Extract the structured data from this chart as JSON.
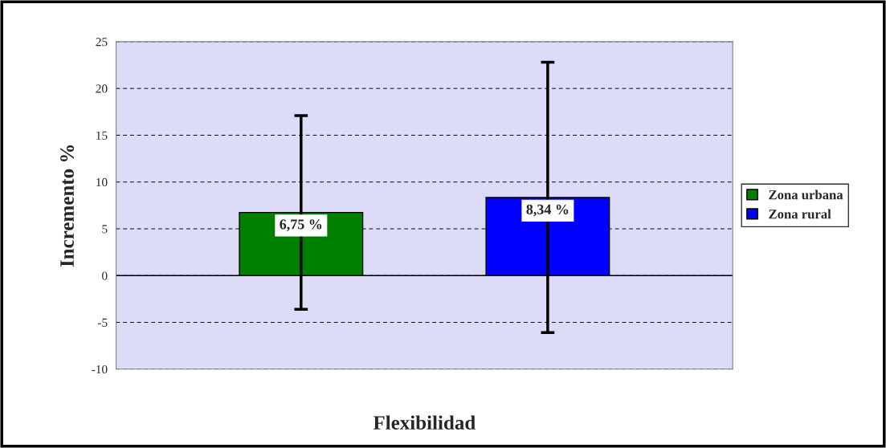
{
  "chart_data": {
    "type": "bar",
    "xlabel": "Flexibilidad",
    "ylabel": "Incremento %",
    "categories": [
      null
    ],
    "series": [
      {
        "name": "Zona urbana",
        "color": "#008000",
        "values": [
          6.75
        ],
        "errors": [
          [
            -3.6,
            17.1
          ]
        ],
        "value_labels": [
          "6,75 %"
        ]
      },
      {
        "name": "Zona rural",
        "color": "#0000ff",
        "values": [
          8.34
        ],
        "errors": [
          [
            -6.1,
            22.8
          ]
        ],
        "value_labels": [
          "8,34 %"
        ]
      }
    ],
    "ylim": [
      -10,
      25
    ],
    "yticks": [
      -10,
      -5,
      0,
      5,
      10,
      15,
      20,
      25
    ],
    "grid": "y",
    "legend": "right"
  }
}
